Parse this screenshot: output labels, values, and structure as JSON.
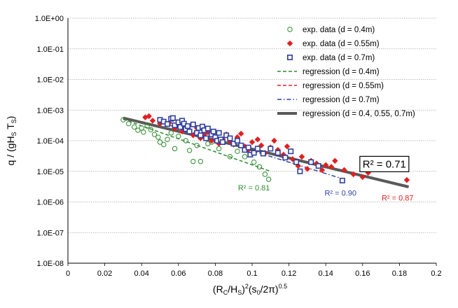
{
  "chart_data": {
    "type": "scatter",
    "title": "",
    "xlabel": "(R_C/H_S)^2(s_0/2π)^0.5",
    "ylabel": "q / (gH_S T_S)",
    "xlim": [
      0,
      0.2
    ],
    "ylim_log10": [
      -8,
      0
    ],
    "x_ticks": [
      "0",
      "0.02",
      "0.04",
      "0.06",
      "0.08",
      "0.1",
      "0.12",
      "0.14",
      "0.16",
      "0.18",
      "0.2"
    ],
    "y_ticks": [
      "1.0E-08",
      "1.0E-07",
      "1.0E-06",
      "1.0E-05",
      "1.0E-04",
      "1.0E-03",
      "1.0E-02",
      "1.0E-01",
      "1.0E+00"
    ],
    "grid": "horizontal",
    "legend_position": "top-right",
    "colors": {
      "green": "#2e8b2e",
      "red": "#e02020",
      "blue": "#3040a0",
      "gray": "#595959"
    },
    "series": [
      {
        "name": "exp. data (d = 0.4m)",
        "marker": "circle",
        "color": "#2e8b2e",
        "points": [
          [
            0.03,
            0.00048
          ],
          [
            0.033,
            0.00036
          ],
          [
            0.036,
            0.00028
          ],
          [
            0.038,
            0.00022
          ],
          [
            0.04,
            0.00026
          ],
          [
            0.041,
            0.00019
          ],
          [
            0.043,
            0.0003
          ],
          [
            0.045,
            0.00023
          ],
          [
            0.047,
            0.00016
          ],
          [
            0.049,
            0.00013
          ],
          [
            0.05,
            9e-05
          ],
          [
            0.052,
            7.5e-05
          ],
          [
            0.054,
            0.00011
          ],
          [
            0.056,
            0.00018
          ],
          [
            0.058,
            5.5e-05
          ],
          [
            0.06,
            0.00014
          ],
          [
            0.062,
            0.00026
          ],
          [
            0.064,
            0.0001
          ],
          [
            0.066,
            4.8e-05
          ],
          [
            0.068,
            2.1e-05
          ],
          [
            0.07,
            7e-05
          ],
          [
            0.072,
            2.1e-05
          ],
          [
            0.074,
            0.00018
          ],
          [
            0.076,
            8e-05
          ],
          [
            0.078,
            9e-05
          ],
          [
            0.08,
            0.00016
          ],
          [
            0.082,
            5.5e-05
          ],
          [
            0.084,
            0.00011
          ],
          [
            0.088,
            3e-05
          ],
          [
            0.092,
            4.5e-05
          ],
          [
            0.096,
            3e-05
          ],
          [
            0.101,
            2e-05
          ],
          [
            0.104,
            1.4e-05
          ],
          [
            0.107,
            8e-06
          ],
          [
            0.109,
            5.5e-06
          ]
        ]
      },
      {
        "name": "exp. data (d = 0.55m)",
        "marker": "diamond",
        "color": "#e02020",
        "points": [
          [
            0.042,
            0.00058
          ],
          [
            0.044,
            0.00063
          ],
          [
            0.046,
            0.00045
          ],
          [
            0.05,
            0.00036
          ],
          [
            0.052,
            0.00042
          ],
          [
            0.055,
            0.00038
          ],
          [
            0.058,
            0.00025
          ],
          [
            0.06,
            0.00029
          ],
          [
            0.062,
            0.0002
          ],
          [
            0.064,
            0.0003
          ],
          [
            0.066,
            0.00022
          ],
          [
            0.068,
            0.00015
          ],
          [
            0.07,
            0.00026
          ],
          [
            0.072,
            0.00012
          ],
          [
            0.074,
            0.00016
          ],
          [
            0.076,
            0.00019
          ],
          [
            0.078,
            0.0001
          ],
          [
            0.08,
            0.00013
          ],
          [
            0.082,
            8e-05
          ],
          [
            0.084,
            0.00011
          ],
          [
            0.086,
            0.00016
          ],
          [
            0.088,
            9.5e-05
          ],
          [
            0.09,
            7.5e-05
          ],
          [
            0.092,
            0.00013
          ],
          [
            0.094,
            0.00017
          ],
          [
            0.096,
            6.5e-05
          ],
          [
            0.098,
            5e-05
          ],
          [
            0.1,
            9e-05
          ],
          [
            0.103,
            0.00011
          ],
          [
            0.105,
            7e-05
          ],
          [
            0.107,
            4e-05
          ],
          [
            0.11,
            6e-05
          ],
          [
            0.112,
            0.0001
          ],
          [
            0.114,
            5e-05
          ],
          [
            0.117,
            3.5e-05
          ],
          [
            0.119,
            6.5e-05
          ],
          [
            0.122,
            2.5e-05
          ],
          [
            0.125,
            1.5e-05
          ],
          [
            0.127,
            3e-05
          ],
          [
            0.13,
            1.2e-05
          ],
          [
            0.132,
            2.2e-05
          ],
          [
            0.135,
            1.8e-05
          ],
          [
            0.138,
            1.1e-05
          ],
          [
            0.14,
            1.6e-05
          ],
          [
            0.143,
            1.4e-05
          ],
          [
            0.145,
            2.2e-05
          ],
          [
            0.15,
            1.1e-05
          ],
          [
            0.155,
            8e-06
          ],
          [
            0.16,
            6.5e-06
          ],
          [
            0.163,
            9e-06
          ],
          [
            0.184,
            5.2e-06
          ]
        ]
      },
      {
        "name": "exp. data (d = 0.7m)",
        "marker": "square",
        "color": "#3040a0",
        "points": [
          [
            0.05,
            0.00048
          ],
          [
            0.052,
            0.00042
          ],
          [
            0.054,
            0.00035
          ],
          [
            0.056,
            0.00052
          ],
          [
            0.057,
            0.00055
          ],
          [
            0.058,
            0.00032
          ],
          [
            0.06,
            0.0004
          ],
          [
            0.061,
            0.00028
          ],
          [
            0.062,
            0.00045
          ],
          [
            0.063,
            0.00036
          ],
          [
            0.064,
            0.00024
          ],
          [
            0.065,
            0.0003
          ],
          [
            0.066,
            0.0002
          ],
          [
            0.068,
            0.00034
          ],
          [
            0.07,
            0.00018
          ],
          [
            0.071,
            0.00026
          ],
          [
            0.072,
            0.00015
          ],
          [
            0.073,
            0.00029
          ],
          [
            0.074,
            0.00022
          ],
          [
            0.075,
            0.00012
          ],
          [
            0.076,
            0.00025
          ],
          [
            0.078,
            0.00016
          ],
          [
            0.079,
            0.0002
          ],
          [
            0.08,
            0.00013
          ],
          [
            0.081,
            0.0001
          ],
          [
            0.082,
            0.00018
          ],
          [
            0.083,
            0.00011
          ],
          [
            0.084,
            9e-05
          ],
          [
            0.086,
            0.00015
          ],
          [
            0.088,
            0.00012
          ],
          [
            0.09,
            8e-05
          ],
          [
            0.092,
            0.0001
          ],
          [
            0.094,
            7e-05
          ],
          [
            0.096,
            5e-05
          ],
          [
            0.098,
            6e-05
          ],
          [
            0.099,
            3.5e-05
          ],
          [
            0.101,
            4e-05
          ],
          [
            0.103,
            5.5e-05
          ],
          [
            0.106,
            3.8e-05
          ],
          [
            0.11,
            5.5e-05
          ],
          [
            0.114,
            4e-05
          ],
          [
            0.118,
            2.8e-05
          ],
          [
            0.121,
            4.5e-05
          ],
          [
            0.124,
            2e-05
          ],
          [
            0.126,
            1e-05
          ],
          [
            0.132,
            2e-05
          ],
          [
            0.136,
            1.5e-05
          ],
          [
            0.149,
            5e-06
          ]
        ]
      }
    ],
    "regressions": [
      {
        "name": "regression (d = 0.4m)",
        "style": "dashed",
        "color": "#2e8b2e",
        "x": [
          0.03,
          0.11
        ],
        "y": [
          0.0005,
          1e-05
        ]
      },
      {
        "name": "regression (d = 0.55m)",
        "style": "dashed",
        "color": "#e02020",
        "x": [
          0.04,
          0.185
        ],
        "y": [
          0.00042,
          3.3e-06
        ]
      },
      {
        "name": "regression (d = 0.7m)",
        "style": "dash-dot",
        "color": "#3040a0",
        "x": [
          0.05,
          0.15
        ],
        "y": [
          0.0004,
          5.5e-06
        ]
      },
      {
        "name": "regression (d = 0.4, 0.55, 0.7m)",
        "style": "solid-thick",
        "color": "#595959",
        "x": [
          0.03,
          0.185
        ],
        "y": [
          0.00055,
          3.1e-06
        ]
      }
    ],
    "annotations": [
      {
        "text": "R² = 0.81",
        "color": "#2e8b2e",
        "x": 0.101,
        "y": 2.4e-06
      },
      {
        "text": "R² = 0.90",
        "color": "#3040a0",
        "x": 0.148,
        "y": 1.6e-06
      },
      {
        "text": "R² = 0.87",
        "color": "#e02020",
        "x": 0.179,
        "y": 1.1e-06
      },
      {
        "text": "R² = 0.71",
        "color": "#000000",
        "boxed": true,
        "x": 0.1718,
        "y": 1.4e-05
      }
    ]
  }
}
